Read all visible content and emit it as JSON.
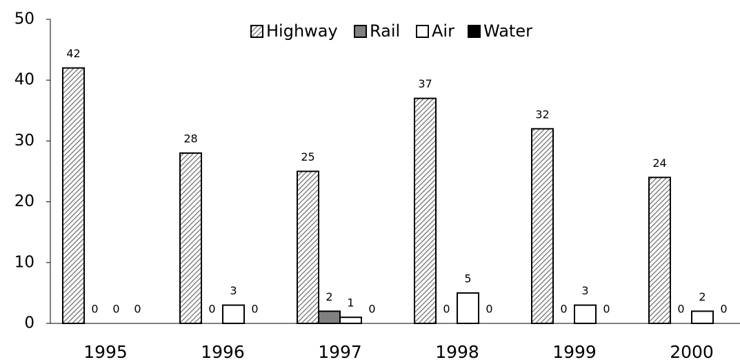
{
  "chart_data": {
    "type": "bar",
    "categories": [
      "1995",
      "1996",
      "1997",
      "1998",
      "1999",
      "2000"
    ],
    "series": [
      {
        "name": "Highway",
        "color": "#808080",
        "pattern": "hatch",
        "values": [
          42,
          28,
          25,
          37,
          32,
          24
        ]
      },
      {
        "name": "Rail",
        "color": "#808080",
        "values": [
          0,
          0,
          2,
          0,
          0,
          0
        ]
      },
      {
        "name": "Air",
        "color": "#ffffff",
        "values": [
          0,
          3,
          1,
          5,
          3,
          2
        ]
      },
      {
        "name": "Water",
        "color": "#000000",
        "values": [
          0,
          0,
          0,
          0,
          0,
          0
        ]
      }
    ],
    "ylim": [
      0,
      50
    ],
    "yticks": [
      0,
      10,
      20,
      30,
      40,
      50
    ],
    "grid": false,
    "legend": "top"
  }
}
